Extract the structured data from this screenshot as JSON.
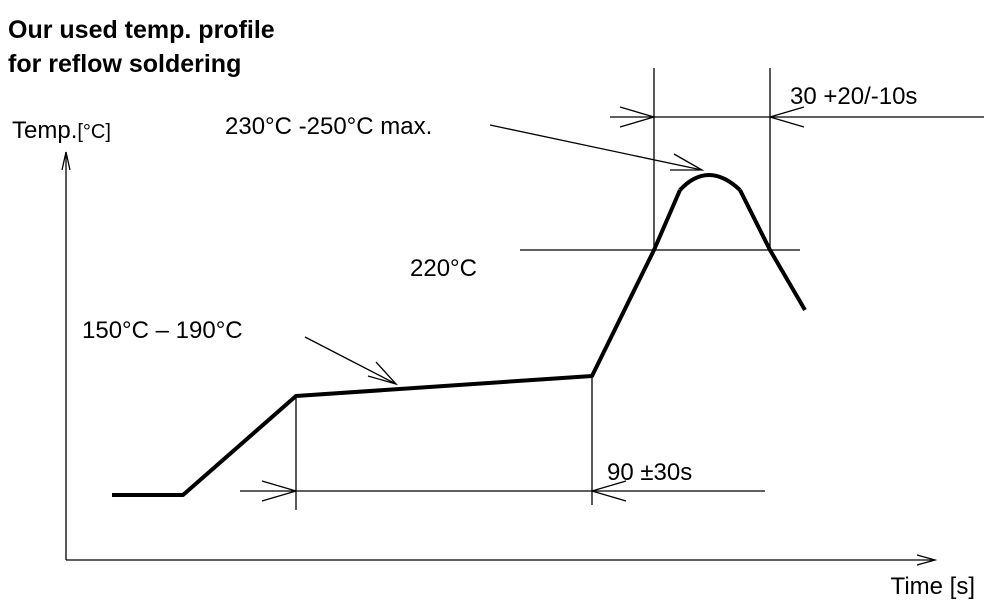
{
  "title": {
    "line1": "Our used temp. profile",
    "line2": "for reflow soldering"
  },
  "y_axis": {
    "label": "Temp.",
    "unit": "[°C]"
  },
  "x_axis": {
    "label": "Time [s]"
  },
  "annotations": {
    "peak_window": "30 +20/-10s",
    "peak_temp": "230°C -250°C max.",
    "liquidus_temp": "220°C",
    "preheat_temp": "150°C – 190°C",
    "preheat_window": "90 ±30s"
  }
}
